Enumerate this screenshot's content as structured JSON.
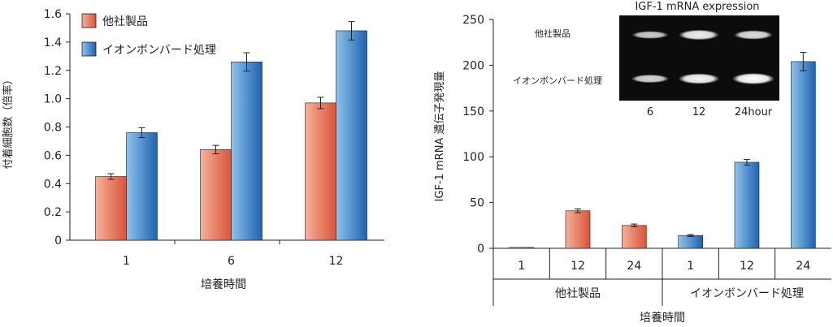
{
  "colors": {
    "orange_light": "#f4b19a",
    "orange_dark": "#d9543a",
    "blue_light": "#8fc3ea",
    "blue_dark": "#1e62b0",
    "axis": "#231f20",
    "gel_bg": "#0c0c0c",
    "band": "#f4f4f4"
  },
  "chart_data": [
    {
      "type": "bar",
      "title": "",
      "xlabel": "培養時間",
      "ylabel": "付着細胞数（倍率）",
      "ylim": [
        0,
        1.6
      ],
      "yticks": [
        "0",
        "0.2",
        "0.4",
        "0.6",
        "0.8",
        "1.0",
        "1.2",
        "1.4",
        "1.6"
      ],
      "categories": [
        "1",
        "6",
        "12"
      ],
      "legend_position": "top-left",
      "grid": false,
      "series": [
        {
          "name": "他社製品",
          "color": "orange",
          "values": [
            0.45,
            0.64,
            0.97
          ],
          "errors": [
            0.02,
            0.03,
            0.04
          ]
        },
        {
          "name": "イオンボンバード処理",
          "color": "blue",
          "values": [
            0.76,
            1.26,
            1.48
          ],
          "errors": [
            0.035,
            0.065,
            0.065
          ]
        }
      ]
    },
    {
      "type": "bar",
      "title": "",
      "xlabel": "培養時間",
      "ylabel": "IGF-1 mRNA 遺伝子発現量",
      "ylim": [
        0,
        250
      ],
      "yticks": [
        "0",
        "50",
        "100",
        "150",
        "200",
        "250"
      ],
      "grid": false,
      "categories": [
        "1",
        "12",
        "24",
        "1",
        "12",
        "24"
      ],
      "groups": [
        "他社製品",
        "イオンボンバード処理"
      ],
      "bars": [
        {
          "group": 0,
          "category": "1",
          "value": 1,
          "error": 0,
          "color": "orange"
        },
        {
          "group": 0,
          "category": "12",
          "value": 41,
          "error": 2,
          "color": "orange"
        },
        {
          "group": 0,
          "category": "24",
          "value": 25,
          "error": 1.5,
          "color": "orange"
        },
        {
          "group": 1,
          "category": "1",
          "value": 14,
          "error": 1,
          "color": "blue"
        },
        {
          "group": 1,
          "category": "12",
          "value": 94,
          "error": 3,
          "color": "blue"
        },
        {
          "group": 1,
          "category": "24",
          "value": 204,
          "error": 10,
          "color": "blue"
        }
      ],
      "inset": {
        "title": "IGF-1 mRNA expression",
        "rows": [
          "他社製品",
          "イオンボンバード処理"
        ],
        "lanes": [
          "6",
          "12",
          "24hour"
        ],
        "band_intensity": [
          [
            0.5,
            0.85,
            0.7
          ],
          [
            0.6,
            0.9,
            1.0
          ]
        ]
      }
    }
  ]
}
